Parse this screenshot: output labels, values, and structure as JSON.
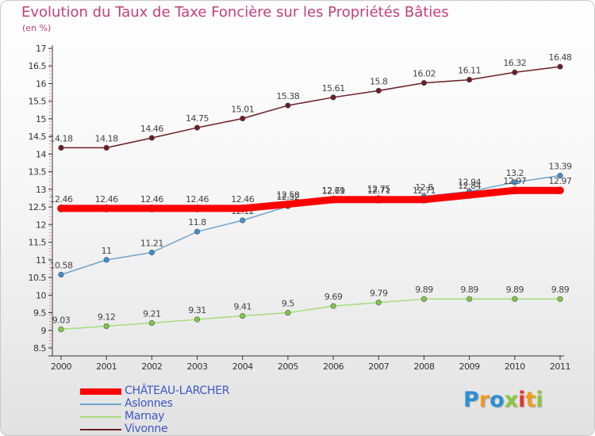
{
  "chart_data": {
    "type": "line",
    "title": "Evolution du Taux de Taxe Foncière sur les Propriétés Bâties",
    "subtitle": "(en %)",
    "x": [
      "2000",
      "2001",
      "2002",
      "2003",
      "2004",
      "2005",
      "2006",
      "2007",
      "2008",
      "2009",
      "2010",
      "2011"
    ],
    "ylim": [
      8.5,
      17
    ],
    "y_ticks": [
      "8.5",
      "9",
      "9.5",
      "10",
      "10.5",
      "11",
      "11.5",
      "12",
      "12.5",
      "13",
      "13.5",
      "14",
      "14.5",
      "15",
      "15.5",
      "16",
      "16.5",
      "17"
    ],
    "grid": false,
    "legend_position": "bottom-left",
    "series": [
      {
        "name": "Vivonne",
        "color": "#6b1e24",
        "marker_color": "#6b1e24",
        "values": [
          14.18,
          14.18,
          14.46,
          14.75,
          15.01,
          15.38,
          15.61,
          15.8,
          16.02,
          16.11,
          16.32,
          16.48
        ],
        "labels": [
          "14.18",
          "14.18",
          "14.46",
          "14.75",
          "15.01",
          "15.38",
          "15.61",
          "15.8",
          "16.02",
          "16.11",
          "16.32",
          "16.48"
        ]
      },
      {
        "name": "Aslonnes",
        "color": "#6fa4cf",
        "marker_color": "#3f8fd0",
        "values": [
          10.58,
          11,
          11.21,
          11.8,
          12.12,
          12.52,
          12.69,
          12.75,
          12.8,
          12.94,
          13.2,
          13.39
        ],
        "labels": [
          "10.58",
          "11",
          "11.21",
          "11.8",
          "12.12",
          "12.52",
          "12.69",
          "12.75",
          "12.8",
          "12.94",
          "13.2",
          "13.39"
        ]
      },
      {
        "name": "Marnay",
        "color": "#a8dc7c",
        "marker_color": "#7cc84a",
        "values": [
          9.03,
          9.12,
          9.21,
          9.31,
          9.41,
          9.5,
          9.69,
          9.79,
          9.89,
          9.89,
          9.89,
          9.89
        ],
        "labels": [
          "9.03",
          "9.12",
          "9.21",
          "9.31",
          "9.41",
          "9.5",
          "9.69",
          "9.79",
          "9.89",
          "9.89",
          "9.89",
          "9.89"
        ]
      },
      {
        "name": "CHÂTEAU-LARCHER",
        "color": "#ff0000",
        "marker_color": "#ff0000",
        "values": [
          12.46,
          12.46,
          12.46,
          12.46,
          12.46,
          12.58,
          12.71,
          12.71,
          12.71,
          12.84,
          12.97,
          12.97
        ],
        "labels": [
          "12.46",
          "12.46",
          "12.46",
          "12.46",
          "12.46",
          "12.58",
          "12.71",
          "12.71",
          "12.71",
          "12.84",
          "12.97",
          "12.97"
        ]
      }
    ],
    "legend": [
      "CHÂTEAU-LARCHER",
      "Aslonnes",
      "Marnay",
      "Vivonne"
    ]
  },
  "logo": {
    "text": "Proxiti",
    "letters": [
      "P",
      "r",
      "o",
      "x",
      "i",
      "t",
      "i"
    ],
    "colors": [
      "#2c8fd6",
      "#f29a1f",
      "#2c8fd6",
      "#8cc63f",
      "#e8322d",
      "#f29a1f",
      "#8cc63f"
    ]
  }
}
